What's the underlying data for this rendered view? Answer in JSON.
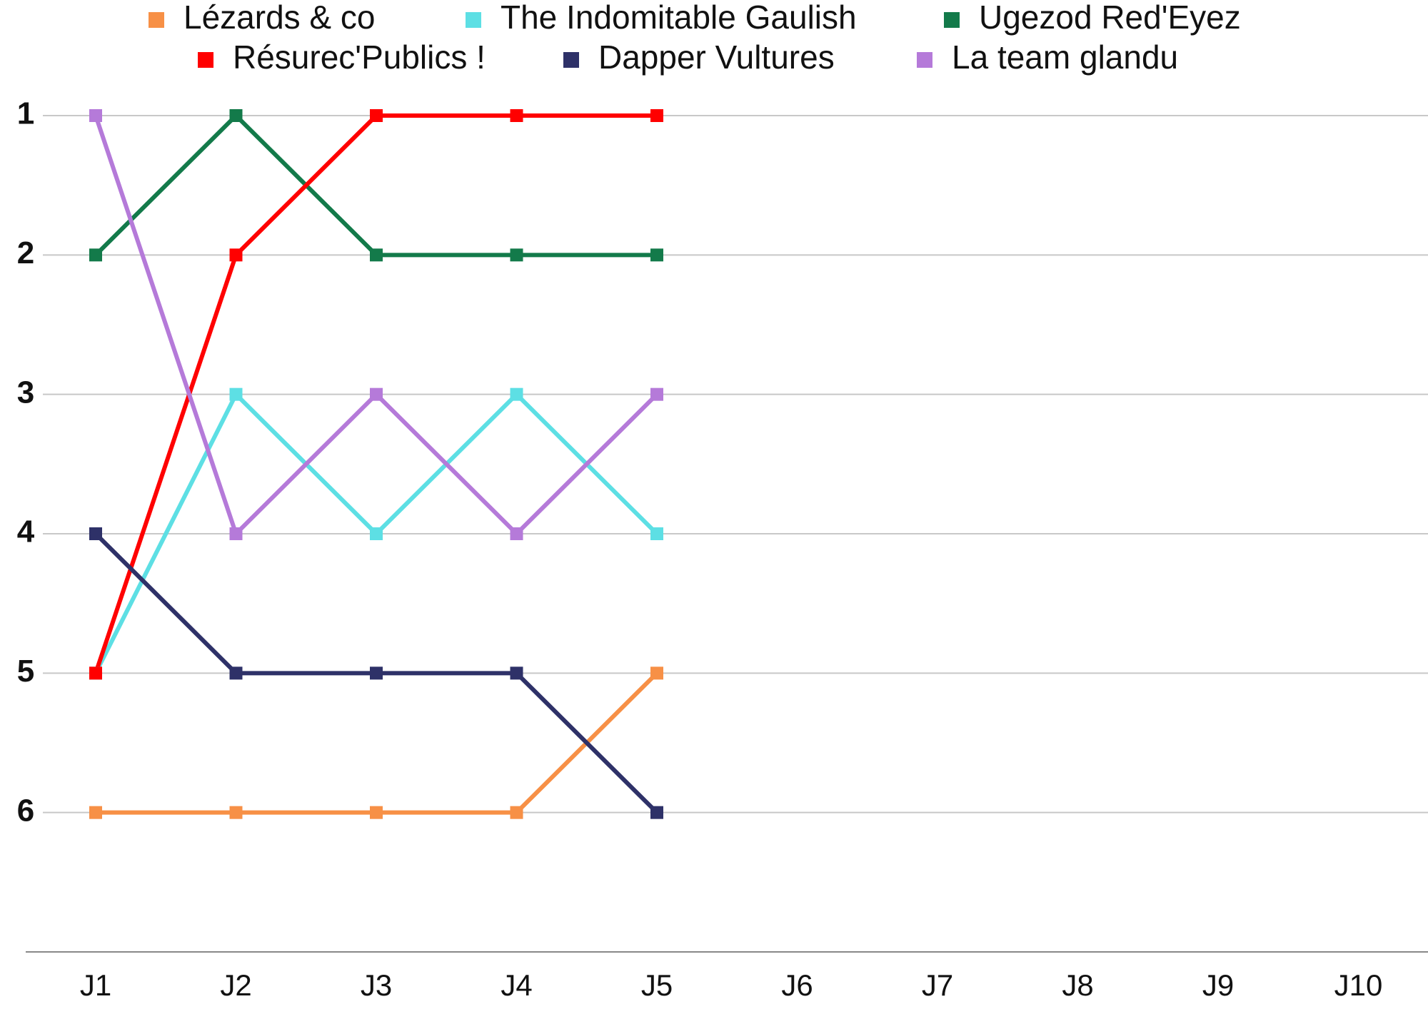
{
  "chart_data": {
    "type": "line",
    "categories": [
      "J1",
      "J2",
      "J3",
      "J4",
      "J5",
      "J6",
      "J7",
      "J8",
      "J9",
      "J10"
    ],
    "series": [
      {
        "name": "Lézards & co",
        "color": "#f79046",
        "values": [
          6,
          6,
          6,
          6,
          5,
          null,
          null,
          null,
          null,
          null
        ]
      },
      {
        "name": "The Indomitable Gaulish",
        "color": "#5ddfe4",
        "values": [
          5,
          3,
          4,
          3,
          4,
          null,
          null,
          null,
          null,
          null
        ]
      },
      {
        "name": "Ugezod Red'Eyez",
        "color": "#137a4a",
        "values": [
          2,
          1,
          2,
          2,
          2,
          null,
          null,
          null,
          null,
          null
        ]
      },
      {
        "name": "Résurec'Publics !",
        "color": "#ff0000",
        "values": [
          5,
          2,
          1,
          1,
          1,
          null,
          null,
          null,
          null,
          null
        ]
      },
      {
        "name": "Dapper Vultures",
        "color": "#2e3168",
        "values": [
          4,
          5,
          5,
          5,
          6,
          null,
          null,
          null,
          null,
          null
        ]
      },
      {
        "name": "La team glandu",
        "color": "#b57ad9",
        "values": [
          1,
          4,
          3,
          4,
          3,
          null,
          null,
          null,
          null,
          null
        ]
      }
    ],
    "ylim": [
      7,
      1
    ],
    "yticks": [
      1,
      2,
      3,
      4,
      5,
      6
    ],
    "grid": true,
    "legend": "top"
  }
}
